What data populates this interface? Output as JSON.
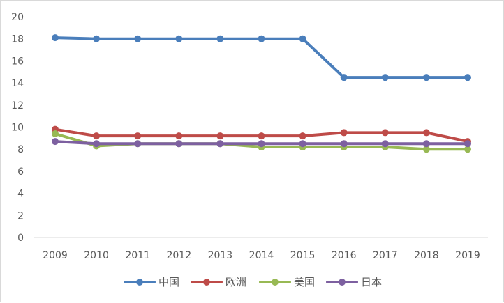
{
  "chart_data": {
    "type": "line",
    "title": "",
    "xlabel": "",
    "ylabel": "",
    "ylim": [
      0,
      20
    ],
    "yticks": [
      "0",
      "2",
      "4",
      "6",
      "8",
      "10",
      "12",
      "14",
      "16",
      "18",
      "20"
    ],
    "categories": [
      "2009",
      "2010",
      "2011",
      "2012",
      "2013",
      "2014",
      "2015",
      "2016",
      "2017",
      "2018",
      "2019"
    ],
    "grid": false,
    "legend_position": "bottom",
    "series": [
      {
        "name": "中国",
        "color": "#4a7ebb",
        "values": [
          18.1,
          18.0,
          18.0,
          18.0,
          18.0,
          18.0,
          18.0,
          14.5,
          14.5,
          14.5,
          14.5
        ]
      },
      {
        "name": "欧洲",
        "color": "#be4b48",
        "values": [
          9.8,
          9.2,
          9.2,
          9.2,
          9.2,
          9.2,
          9.2,
          9.5,
          9.5,
          9.5,
          8.7
        ]
      },
      {
        "name": "美国",
        "color": "#98b954",
        "values": [
          9.4,
          8.3,
          8.5,
          8.5,
          8.5,
          8.2,
          8.2,
          8.2,
          8.2,
          8.0,
          8.0
        ]
      },
      {
        "name": "日本",
        "color": "#7d60a0",
        "values": [
          8.7,
          8.5,
          8.5,
          8.5,
          8.5,
          8.5,
          8.5,
          8.5,
          8.5,
          8.5,
          8.5
        ]
      }
    ]
  }
}
